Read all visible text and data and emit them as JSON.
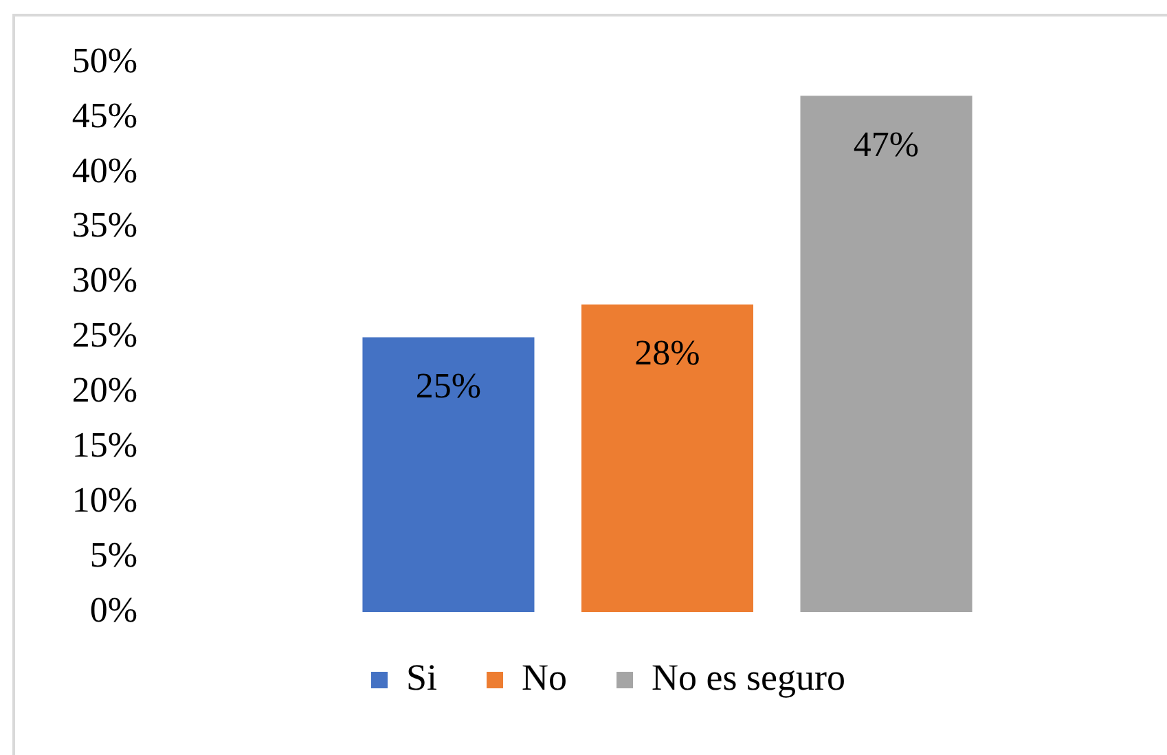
{
  "chart_data": {
    "type": "bar",
    "categories": [
      null
    ],
    "series": [
      {
        "name": "Si",
        "color": "#4472c4",
        "values": [
          25
        ],
        "value_labels": [
          "25%"
        ]
      },
      {
        "name": "No",
        "color": "#ed7d31",
        "values": [
          28
        ],
        "value_labels": [
          "28%"
        ]
      },
      {
        "name": "No es seguro",
        "color": "#a5a5a5",
        "values": [
          47
        ],
        "value_labels": [
          "47%"
        ]
      }
    ],
    "ylim": [
      0,
      50
    ],
    "yticks": [
      {
        "value": 0,
        "label": "0%"
      },
      {
        "value": 5,
        "label": "5%"
      },
      {
        "value": 10,
        "label": "10%"
      },
      {
        "value": 15,
        "label": "15%"
      },
      {
        "value": 20,
        "label": "20%"
      },
      {
        "value": 25,
        "label": "25%"
      },
      {
        "value": 30,
        "label": "30%"
      },
      {
        "value": 35,
        "label": "35%"
      },
      {
        "value": 40,
        "label": "40%"
      },
      {
        "value": 45,
        "label": "45%"
      },
      {
        "value": 50,
        "label": "50%"
      }
    ],
    "legend": "bottom"
  }
}
